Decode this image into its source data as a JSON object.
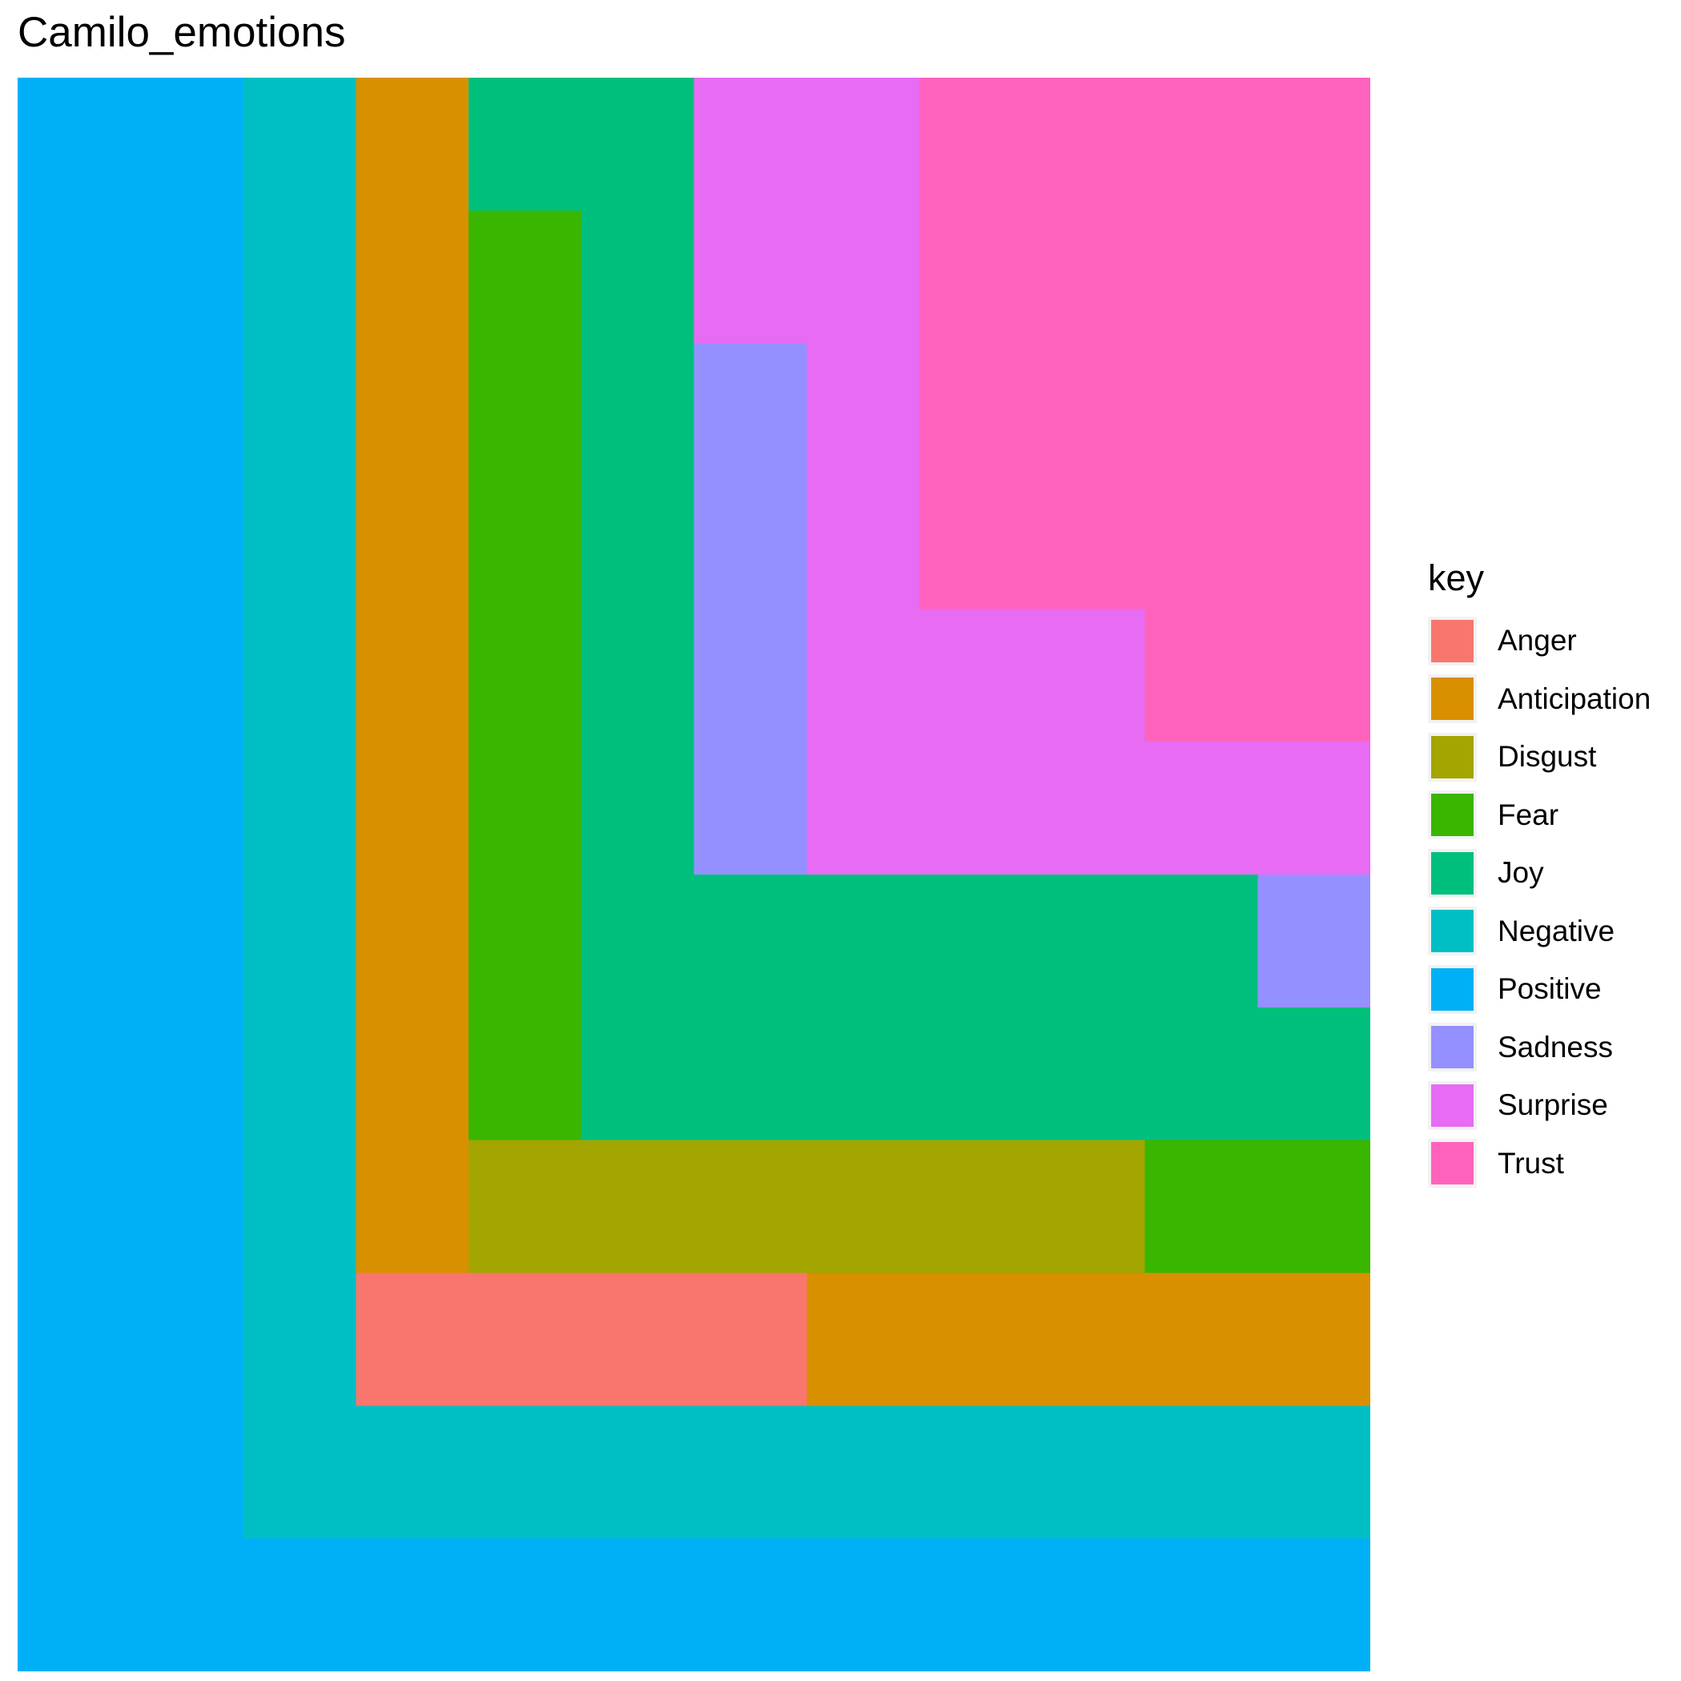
{
  "chart_data": {
    "type": "treemap",
    "title": "Camilo_emotions",
    "legend": {
      "title": "key",
      "position": "right",
      "items": [
        {
          "label": "Anger",
          "color": "#F8766D"
        },
        {
          "label": "Anticipation",
          "color": "#D89000"
        },
        {
          "label": "Disgust",
          "color": "#A3A500"
        },
        {
          "label": "Fear",
          "color": "#39B600"
        },
        {
          "label": "Joy",
          "color": "#00BF7D"
        },
        {
          "label": "Negative",
          "color": "#00BFC4"
        },
        {
          "label": "Positive",
          "color": "#00B0F6"
        },
        {
          "label": "Sadness",
          "color": "#9590FF"
        },
        {
          "label": "Surprise",
          "color": "#E76BF3"
        },
        {
          "label": "Trust",
          "color": "#FF62BC"
        }
      ]
    },
    "tiles": [
      {
        "key": "Positive",
        "x": [
          0,
          2
        ],
        "y": [
          0,
          12
        ]
      },
      {
        "key": "Positive",
        "x": [
          2,
          12
        ],
        "y": [
          0,
          1
        ]
      },
      {
        "key": "Negative",
        "x": [
          2,
          3
        ],
        "y": [
          1,
          12
        ]
      },
      {
        "key": "Negative",
        "x": [
          3,
          12
        ],
        "y": [
          1,
          2
        ]
      },
      {
        "key": "Anticipation",
        "x": [
          3,
          4
        ],
        "y": [
          3,
          12
        ]
      },
      {
        "key": "Anger",
        "x": [
          3,
          7
        ],
        "y": [
          2,
          3
        ]
      },
      {
        "key": "Anticipation",
        "x": [
          7,
          12
        ],
        "y": [
          2,
          3
        ]
      },
      {
        "key": "Disgust",
        "x": [
          4,
          10
        ],
        "y": [
          3,
          4
        ]
      },
      {
        "key": "Fear",
        "x": [
          10,
          12
        ],
        "y": [
          3,
          4
        ]
      },
      {
        "key": "Joy",
        "x": [
          4,
          6
        ],
        "y": [
          11,
          12
        ]
      },
      {
        "key": "Fear",
        "x": [
          4,
          5
        ],
        "y": [
          4,
          11
        ]
      },
      {
        "key": "Joy",
        "x": [
          5,
          6
        ],
        "y": [
          4,
          11
        ]
      },
      {
        "key": "Joy",
        "x": [
          6,
          12
        ],
        "y": [
          4,
          6
        ]
      },
      {
        "key": "Sadness",
        "x": [
          11,
          12
        ],
        "y": [
          5,
          6
        ]
      },
      {
        "key": "Surprise",
        "x": [
          6,
          8
        ],
        "y": [
          10,
          12
        ]
      },
      {
        "key": "Sadness",
        "x": [
          6,
          7
        ],
        "y": [
          6,
          10
        ]
      },
      {
        "key": "Surprise",
        "x": [
          7,
          8
        ],
        "y": [
          6,
          10
        ]
      },
      {
        "key": "Surprise",
        "x": [
          8,
          12
        ],
        "y": [
          6,
          7
        ]
      },
      {
        "key": "Surprise",
        "x": [
          8,
          10
        ],
        "y": [
          7,
          8
        ]
      },
      {
        "key": "Trust",
        "x": [
          10,
          12
        ],
        "y": [
          7,
          8
        ]
      },
      {
        "key": "Trust",
        "x": [
          8,
          12
        ],
        "y": [
          8,
          12
        ]
      }
    ],
    "xlim": [
      0,
      12
    ],
    "ylim": [
      0,
      12
    ],
    "grid": false
  }
}
